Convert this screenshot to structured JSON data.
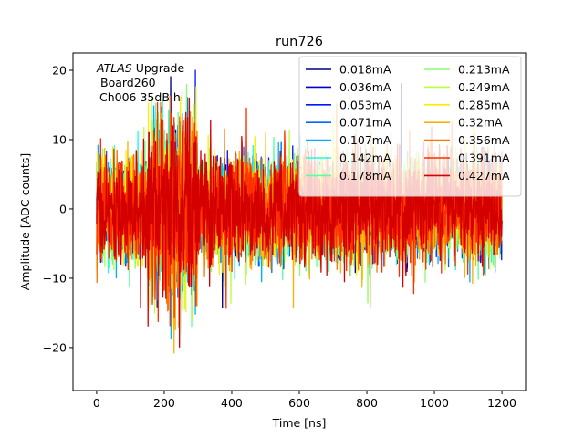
{
  "chart_data": {
    "type": "line",
    "title": "run726",
    "xlabel": "Time [ns]",
    "ylabel": "Amplitude [ADC counts]",
    "xlim": [
      -70,
      1270
    ],
    "ylim": [
      -26.2,
      22.5
    ],
    "xticks": [
      0,
      200,
      400,
      600,
      800,
      1000,
      1200
    ],
    "yticks": [
      -20,
      -10,
      0,
      10,
      20
    ],
    "xtick_labels": [
      "0",
      "200",
      "400",
      "600",
      "800",
      "1000",
      "1200"
    ],
    "ytick_labels": [
      "−20",
      "−10",
      "0",
      "10",
      "20"
    ],
    "grid": false,
    "legend_position": "top-right",
    "legend_columns": 2,
    "annotation": {
      "line1_italic": "ATLAS",
      "line1_rest": " Upgrade",
      "line2": "Board260",
      "line3": "Ch006 35dB hi"
    },
    "waveform": {
      "x_start": 0,
      "x_end": 1200,
      "n_points": 1200,
      "typical_amplitude": 6,
      "observed_max": 20,
      "observed_min": -24,
      "burst_region": [
        150,
        300
      ],
      "burst_amplitude": 12
    },
    "series": [
      {
        "name": "0.018mA",
        "color": "#00007f"
      },
      {
        "name": "0.036mA",
        "color": "#0000c8"
      },
      {
        "name": "0.053mA",
        "color": "#0018ff"
      },
      {
        "name": "0.071mA",
        "color": "#0064ff"
      },
      {
        "name": "0.107mA",
        "color": "#00b0ff"
      },
      {
        "name": "0.142mA",
        "color": "#1cffdb"
      },
      {
        "name": "0.178mA",
        "color": "#5affa0"
      },
      {
        "name": "0.213mA",
        "color": "#88ff6e"
      },
      {
        "name": "0.249mA",
        "color": "#b8ff3e"
      },
      {
        "name": "0.285mA",
        "color": "#ffee00"
      },
      {
        "name": "0.32mA",
        "color": "#ffb000"
      },
      {
        "name": "0.356mA",
        "color": "#ff7400"
      },
      {
        "name": "0.391mA",
        "color": "#ff2e00"
      },
      {
        "name": "0.427mA",
        "color": "#d40000"
      }
    ]
  }
}
